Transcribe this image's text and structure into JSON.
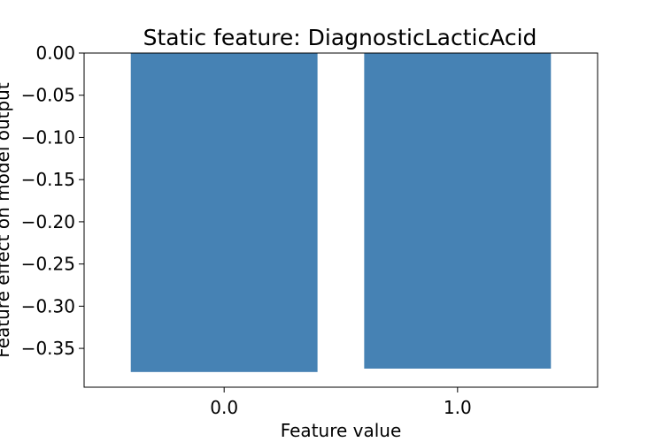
{
  "chart_data": {
    "type": "bar",
    "title": "Static feature: DiagnosticLacticAcid",
    "xlabel": "Feature value",
    "ylabel": "Feature effect on model output",
    "categories": [
      "0.0",
      "1.0"
    ],
    "values": [
      -0.378,
      -0.374
    ],
    "ylim": [
      -0.396,
      0.0
    ],
    "yticks": [
      0.0,
      -0.05,
      -0.1,
      -0.15,
      -0.2,
      -0.25,
      -0.3,
      -0.35
    ],
    "ytick_labels": [
      "0.00",
      "−0.05",
      "−0.10",
      "−0.15",
      "−0.20",
      "−0.25",
      "−0.30",
      "−0.35"
    ],
    "bar_color": "#4682b4",
    "grid": false,
    "legend": "none"
  }
}
